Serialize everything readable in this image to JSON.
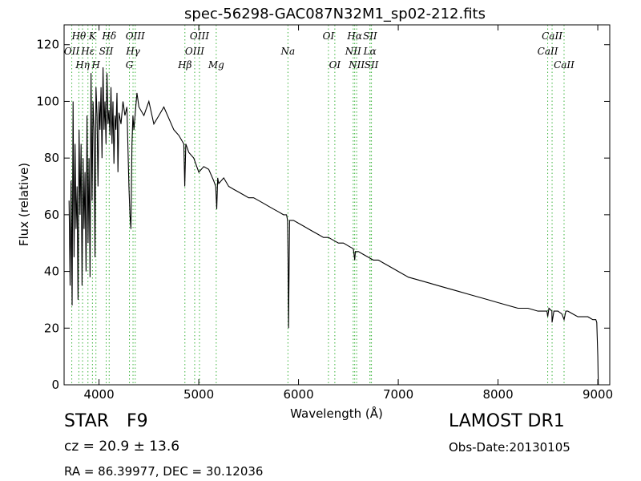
{
  "chart_data": {
    "type": "line",
    "title": "spec-56298-GAC087N32M1_sp02-212.fits",
    "xlabel": "Wavelength (Å)",
    "ylabel": "Flux (relative)",
    "xlim": [
      3650,
      9120
    ],
    "ylim": [
      0,
      127
    ],
    "xticks": [
      4000,
      5000,
      6000,
      7000,
      8000,
      9000
    ],
    "yticks": [
      0,
      20,
      40,
      60,
      80,
      100,
      120
    ],
    "grid": false,
    "line_color": "#000000",
    "marker_color": "#3cb43c",
    "series": [
      {
        "x": [
          3700,
          3710,
          3720,
          3730,
          3740,
          3750,
          3760,
          3770,
          3780,
          3790,
          3800,
          3810,
          3820,
          3830,
          3840,
          3850,
          3860,
          3870,
          3880,
          3890,
          3900,
          3910,
          3920,
          3930,
          3940,
          3950,
          3960,
          3970,
          3980,
          3990,
          4000,
          4010,
          4020,
          4030,
          4040,
          4050,
          4060,
          4070,
          4080,
          4090,
          4100,
          4110,
          4120,
          4130,
          4140,
          4150,
          4160,
          4170,
          4180,
          4190,
          4200,
          4220,
          4240,
          4260,
          4280,
          4300,
          4310,
          4320,
          4330,
          4340,
          4350,
          4380,
          4400,
          4450,
          4500,
          4550,
          4600,
          4650,
          4700,
          4750,
          4800,
          4850,
          4860,
          4870,
          4900,
          4950,
          5000,
          5050,
          5100,
          5150,
          5170,
          5180,
          5190,
          5200,
          5250,
          5300,
          5350,
          5400,
          5450,
          5500,
          5550,
          5600,
          5650,
          5700,
          5750,
          5800,
          5850,
          5880,
          5890,
          5895,
          5900,
          5910,
          5950,
          6000,
          6050,
          6100,
          6150,
          6200,
          6250,
          6300,
          6350,
          6400,
          6450,
          6500,
          6550,
          6560,
          6563,
          6570,
          6600,
          6650,
          6700,
          6750,
          6800,
          6850,
          6900,
          6950,
          7000,
          7100,
          7200,
          7300,
          7400,
          7500,
          7600,
          7700,
          7800,
          7900,
          8000,
          8100,
          8200,
          8300,
          8400,
          8450,
          8490,
          8498,
          8510,
          8540,
          8542,
          8560,
          8600,
          8640,
          8662,
          8680,
          8700,
          8750,
          8800,
          8850,
          8900,
          8950,
          8980,
          8990,
          9000,
          9005
        ],
        "y": [
          65,
          35,
          72,
          28,
          100,
          45,
          85,
          55,
          70,
          30,
          90,
          60,
          85,
          35,
          80,
          55,
          75,
          40,
          95,
          50,
          80,
          38,
          110,
          65,
          100,
          90,
          45,
          105,
          95,
          70,
          100,
          90,
          105,
          80,
          112,
          90,
          100,
          85,
          110,
          92,
          97,
          88,
          105,
          85,
          100,
          78,
          95,
          90,
          103,
          75,
          96,
          92,
          100,
          95,
          98,
          70,
          60,
          55,
          85,
          95,
          90,
          103,
          98,
          95,
          100,
          92,
          95,
          98,
          94,
          90,
          88,
          85,
          70,
          85,
          82,
          80,
          75,
          77,
          76,
          72,
          70,
          62,
          73,
          71,
          73,
          70,
          69,
          68,
          67,
          66,
          66,
          65,
          64,
          63,
          62,
          61,
          60,
          60,
          58,
          45,
          20,
          58,
          58,
          57,
          56,
          55,
          54,
          53,
          52,
          52,
          51,
          50,
          50,
          49,
          48,
          45,
          44,
          47,
          47,
          46,
          45,
          44,
          44,
          43,
          42,
          41,
          40,
          38,
          37,
          36,
          35,
          34,
          33,
          32,
          31,
          30,
          29,
          28,
          27,
          27,
          26,
          26,
          26,
          24,
          27,
          26,
          22,
          26,
          26,
          25,
          23,
          26,
          26,
          25,
          24,
          24,
          24,
          23,
          23,
          22,
          10,
          0
        ]
      }
    ],
    "lines": [
      {
        "label": "OII",
        "x": 3727,
        "row": 1
      },
      {
        "label": "Hθ",
        "x": 3798,
        "row": 0
      },
      {
        "label": "Hη",
        "x": 3835,
        "row": 2
      },
      {
        "label": "Hε",
        "x": 3889,
        "row": 1
      },
      {
        "label": "K",
        "x": 3934,
        "row": 0
      },
      {
        "label": "H",
        "x": 3969,
        "row": 2
      },
      {
        "label": "SII",
        "x": 4072,
        "row": 1
      },
      {
        "label": "Hδ",
        "x": 4102,
        "row": 0
      },
      {
        "label": "G",
        "x": 4305,
        "row": 2
      },
      {
        "label": "Hγ",
        "x": 4341,
        "row": 1
      },
      {
        "label": "OIII",
        "x": 4363,
        "row": 0
      },
      {
        "label": "Hβ",
        "x": 4861,
        "row": 2
      },
      {
        "label": "OIII",
        "x": 4959,
        "row": 1
      },
      {
        "label": "OIII",
        "x": 5007,
        "row": 0
      },
      {
        "label": "Mg",
        "x": 5175,
        "row": 2
      },
      {
        "label": "Na",
        "x": 5894,
        "row": 1
      },
      {
        "label": "OI",
        "x": 6300,
        "row": 0
      },
      {
        "label": "OI",
        "x": 6364,
        "row": 2
      },
      {
        "label": "NII",
        "x": 6548,
        "row": 1
      },
      {
        "label": "Hα",
        "x": 6563,
        "row": 0
      },
      {
        "label": "NII",
        "x": 6583,
        "row": 2
      },
      {
        "label": "Lα",
        "x": 6716,
        "row": 1
      },
      {
        "label": "SII",
        "x": 6717,
        "row": 0
      },
      {
        "label": "SII",
        "x": 6731,
        "row": 2
      },
      {
        "label": "CaII",
        "x": 8498,
        "row": 1
      },
      {
        "label": "CaII",
        "x": 8542,
        "row": 0
      },
      {
        "label": "CaII",
        "x": 8662,
        "row": 2
      }
    ]
  },
  "info": {
    "object_class": "STAR",
    "subclass": "F9",
    "redshift": "cz = 20.9  ± 13.6",
    "coords": "RA = 86.39977, DEC = 30.12036",
    "survey": "LAMOST DR1",
    "obs_date": "Obs-Date:20130105"
  }
}
